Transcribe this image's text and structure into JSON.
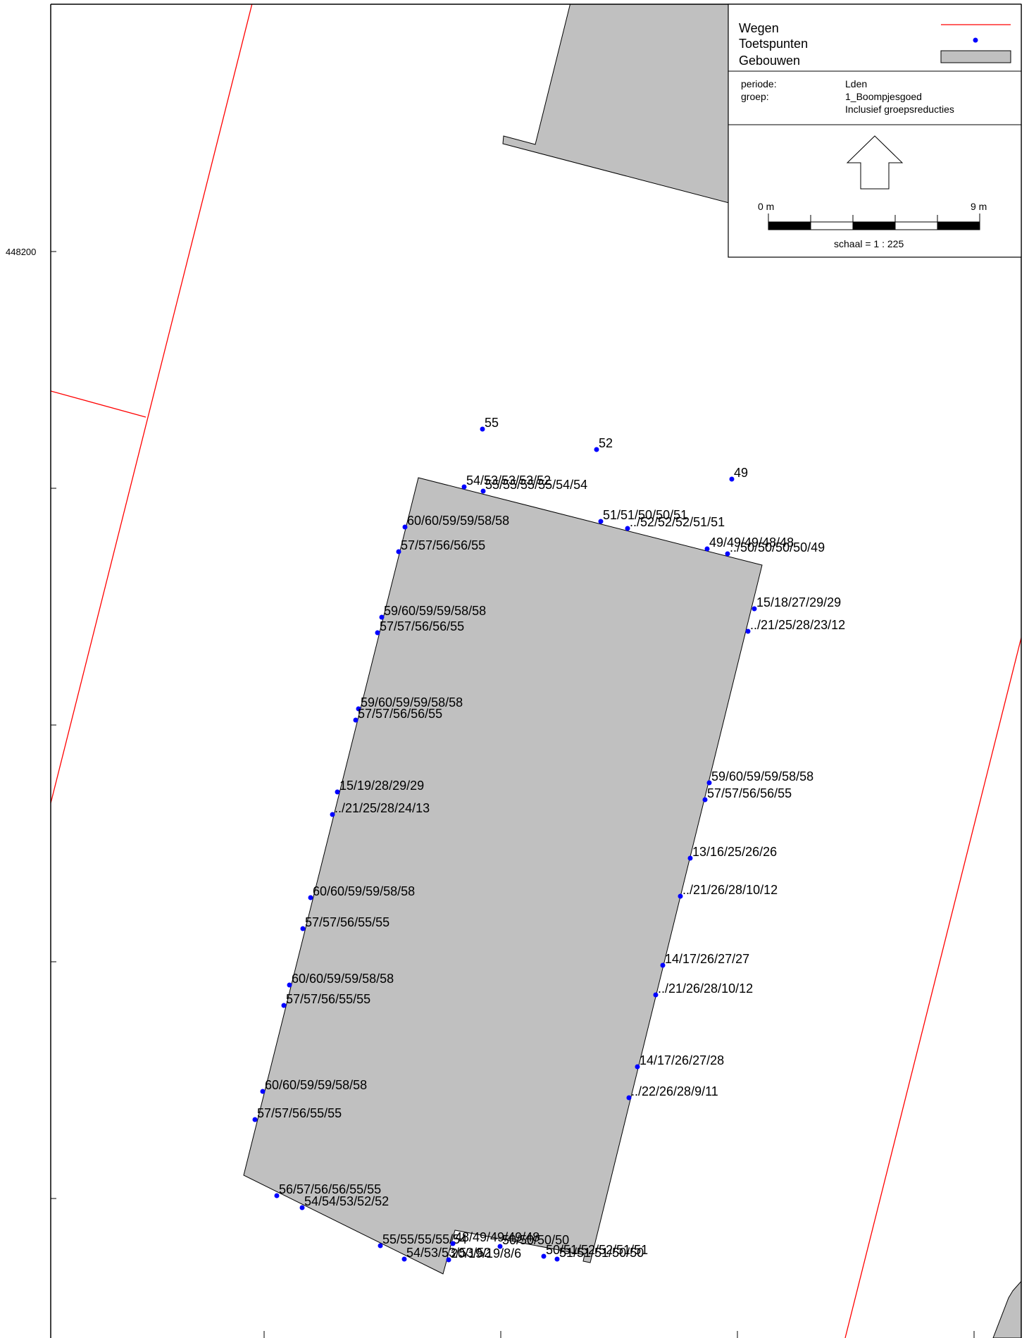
{
  "axis": {
    "y_label": "448200"
  },
  "legend": {
    "items": [
      {
        "label": "Wegen",
        "symbol": "red-line",
        "color": "#ff0000"
      },
      {
        "label": "Toetspunten",
        "symbol": "blue-dot",
        "color": "#0000ff"
      },
      {
        "label": "Gebouwen",
        "symbol": "grey-box",
        "color": "#c0c0c0"
      }
    ],
    "info": [
      {
        "key": "periode:",
        "value": "Lden"
      },
      {
        "key": "groep:",
        "value": "1_Boompjesgoed"
      },
      {
        "key": "",
        "value": "Inclusief groepsreducties"
      }
    ],
    "north_arrow": "north-arrow-icon",
    "scalebar": {
      "start_label": "0 m",
      "end_label": "9 m",
      "scale_text": "schaal = 1 : 225"
    }
  },
  "colors": {
    "building": "#c0c0c0",
    "road": "#ff0000",
    "point": "#0000ff"
  },
  "points": [
    {
      "label": "55"
    },
    {
      "label": "52"
    },
    {
      "label": "49"
    },
    {
      "label": "54/53/53/53/52"
    },
    {
      "label": "55/55/55/55/54/54"
    },
    {
      "label": "51/51/50/50/51"
    },
    {
      "label": "../52/52/52/51/51"
    },
    {
      "label": "49/49/49/48/48"
    },
    {
      "label": "../50/50/50/50/49"
    },
    {
      "label": "60/60/59/59/58/58"
    },
    {
      "label": "57/57/56/56/55"
    },
    {
      "label": "59/60/59/59/58/58"
    },
    {
      "label": "57/57/56/56/55"
    },
    {
      "label": "15/18/27/29/29"
    },
    {
      "label": "../21/25/28/23/12"
    },
    {
      "label": "59/60/59/59/58/58"
    },
    {
      "label": "57/57/56/56/55"
    },
    {
      "label": "59/60/59/59/58/58"
    },
    {
      "label": "57/57/56/56/55"
    },
    {
      "label": "15/19/28/29/29"
    },
    {
      "label": "../21/25/28/24/13"
    },
    {
      "label": "13/16/25/26/26"
    },
    {
      "label": "../21/26/28/10/12"
    },
    {
      "label": "60/60/59/59/58/58"
    },
    {
      "label": "57/57/56/55/55"
    },
    {
      "label": "14/17/26/27/27"
    },
    {
      "label": "../21/26/28/10/12"
    },
    {
      "label": "60/60/59/59/58/58"
    },
    {
      "label": "57/57/56/55/55"
    },
    {
      "label": "14/17/26/27/28"
    },
    {
      "label": "../22/26/28/9/11"
    },
    {
      "label": "60/60/59/59/58/58"
    },
    {
      "label": "57/57/56/55/55"
    },
    {
      "label": "56/57/56/56/55/55"
    },
    {
      "label": "54/54/53/52/52"
    },
    {
      "label": "55/55/55/55/54"
    },
    {
      "label": "54/53/53/53/52"
    },
    {
      "label": "48/49/49/49/48"
    },
    {
      "label": "50/50/50/50"
    },
    {
      "label": "20/19/19/8/6"
    },
    {
      "label": "50/51/52/52/51/51"
    },
    {
      "label": "51/51/51/50/50"
    }
  ]
}
